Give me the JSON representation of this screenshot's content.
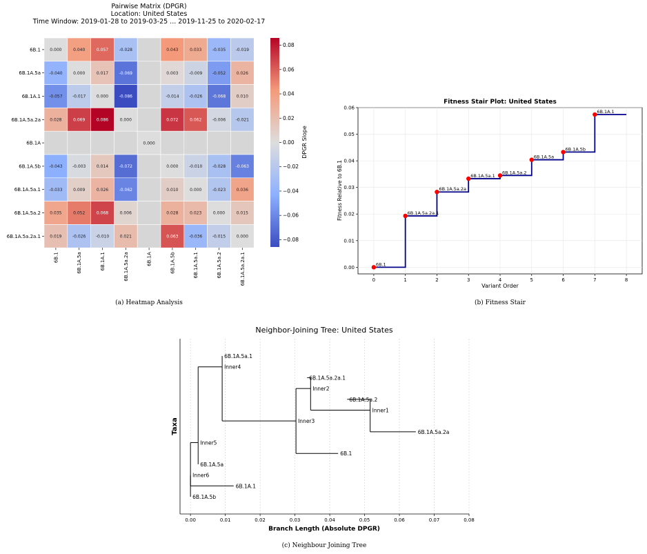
{
  "chart_data": [
    {
      "type": "heatmap",
      "title_lines": [
        "Pairwise Matrix (DPGR)",
        "Location: United States",
        "Time Window: 2019-01-28 to 2019-03-25 ... 2019-11-25 to 2020-02-17"
      ],
      "rows": [
        "6B.1",
        "6B.1A.5a",
        "6B.1A.1",
        "6B.1A.5a.2a",
        "6B.1A",
        "6B.1A.5b",
        "6B.1A.5a.1",
        "6B.1A.5a.2",
        "6B.1A.5a.2a.1"
      ],
      "cols": [
        "6B.1",
        "6B.1A.5a",
        "6B.1A.1",
        "6B.1A.5a.2a",
        "6B.1A",
        "6B.1A.5b",
        "6B.1A.5a.1",
        "6B.1A.5a.2",
        "6B.1A.5a.2a.1"
      ],
      "values": [
        [
          0.0,
          0.04,
          0.057,
          -0.028,
          null,
          0.043,
          0.033,
          -0.035,
          -0.019
        ],
        [
          -0.04,
          0.0,
          0.017,
          -0.069,
          null,
          0.003,
          -0.009,
          -0.052,
          0.026
        ],
        [
          -0.057,
          -0.017,
          0.0,
          -0.086,
          null,
          -0.014,
          -0.026,
          -0.068,
          0.01
        ],
        [
          0.028,
          0.069,
          0.086,
          0.0,
          null,
          0.072,
          0.062,
          -0.006,
          -0.021
        ],
        [
          null,
          null,
          null,
          null,
          0.0,
          null,
          null,
          null,
          null
        ],
        [
          -0.043,
          -0.003,
          0.014,
          -0.072,
          null,
          0.0,
          -0.01,
          -0.028,
          -0.063
        ],
        [
          -0.033,
          0.009,
          0.026,
          -0.062,
          null,
          0.01,
          0.0,
          -0.023,
          0.036
        ],
        [
          0.035,
          0.052,
          0.068,
          0.006,
          null,
          0.028,
          0.023,
          0.0,
          0.015
        ],
        [
          0.019,
          -0.026,
          -0.01,
          0.021,
          null,
          0.063,
          -0.036,
          -0.015,
          0.0
        ]
      ],
      "colorbar_label": "DPGR Slope",
      "colorbar_ticks": [
        "0.08",
        "0.06",
        "0.04",
        "0.02",
        "0.00",
        "−0.02",
        "−0.04",
        "−0.06",
        "−0.08"
      ],
      "vmin": -0.086,
      "vmax": 0.086,
      "colors": {
        "low": "#3b4cc0",
        "mid": "#dddddd",
        "high": "#b40426",
        "nan": "#d6d6d6"
      },
      "caption": "(a) Heatmap Analysis"
    },
    {
      "type": "line",
      "title": "Fitness Stair Plot: United States",
      "xlabel": "Variant Order",
      "ylabel": "Fitness Relative to 6B.1",
      "x": [
        0,
        1,
        2,
        3,
        4,
        5,
        6,
        7
      ],
      "values": [
        0.0,
        0.0193,
        0.0283,
        0.0333,
        0.0345,
        0.0404,
        0.0433,
        0.0574
      ],
      "point_labels": [
        "6B.1",
        "6B.1A.5a.2a.1",
        "6B.1A.5a.2a",
        "6B.1A.5a.1",
        "6B.1A.5a.2",
        "6B.1A.5a",
        "6B.1A.5b",
        "6B.1A.1"
      ],
      "xlim": [
        -0.5,
        8.5
      ],
      "ylim": [
        -0.0025,
        0.06
      ],
      "xticks": [
        "0",
        "1",
        "2",
        "3",
        "4",
        "5",
        "6",
        "7",
        "8"
      ],
      "yticks": [
        "0.00",
        "0.01",
        "0.02",
        "0.03",
        "0.04",
        "0.05",
        "0.06"
      ],
      "grid": true,
      "colors": {
        "line": "#00008b",
        "point": "#ff0000"
      },
      "caption": "(b) Fitness Stair"
    },
    {
      "type": "tree",
      "title": "Neighbor-Joining Tree: United States",
      "xlabel": "Branch Length (Absolute DPGR)",
      "ylabel": "Taxa",
      "xlim": [
        -0.003,
        0.08
      ],
      "xticks": [
        "0.00",
        "0.01",
        "0.02",
        "0.03",
        "0.04",
        "0.05",
        "0.06",
        "0.07",
        "0.08"
      ],
      "nodes": [
        {
          "name": "6B.1A.5a.1",
          "x": 0.0091,
          "parent": "Inner4"
        },
        {
          "name": "Inner4",
          "x": 0.0091,
          "parent": "Inner5"
        },
        {
          "name": "6B.1A.5a.2a.1",
          "x": 0.0335,
          "parent": "Inner2"
        },
        {
          "name": "Inner2",
          "x": 0.0345,
          "parent": "Inner3"
        },
        {
          "name": "6B.1A.5a.2",
          "x": 0.045,
          "parent": "Inner1"
        },
        {
          "name": "Inner1",
          "x": 0.0516,
          "parent": "Inner2"
        },
        {
          "name": "Inner3",
          "x": 0.0303,
          "parent": "Inner4"
        },
        {
          "name": "6B.1A.5a.2a",
          "x": 0.0647,
          "parent": "Inner1"
        },
        {
          "name": "Inner5",
          "x": 0.0022,
          "parent": "Inner6"
        },
        {
          "name": "6B.1",
          "x": 0.0424,
          "parent": "Inner3"
        },
        {
          "name": "6B.1A.5a",
          "x": 0.0022,
          "parent": "Inner5"
        },
        {
          "name": "Inner6",
          "x": 0.0,
          "parent": ""
        },
        {
          "name": "6B.1A.1",
          "x": 0.0124,
          "parent": "Inner6"
        },
        {
          "name": "6B.1A.5b",
          "x": 0.0,
          "parent": "Inner6"
        }
      ],
      "grid": true,
      "caption": "(c) Neighbour Joining Tree"
    }
  ]
}
